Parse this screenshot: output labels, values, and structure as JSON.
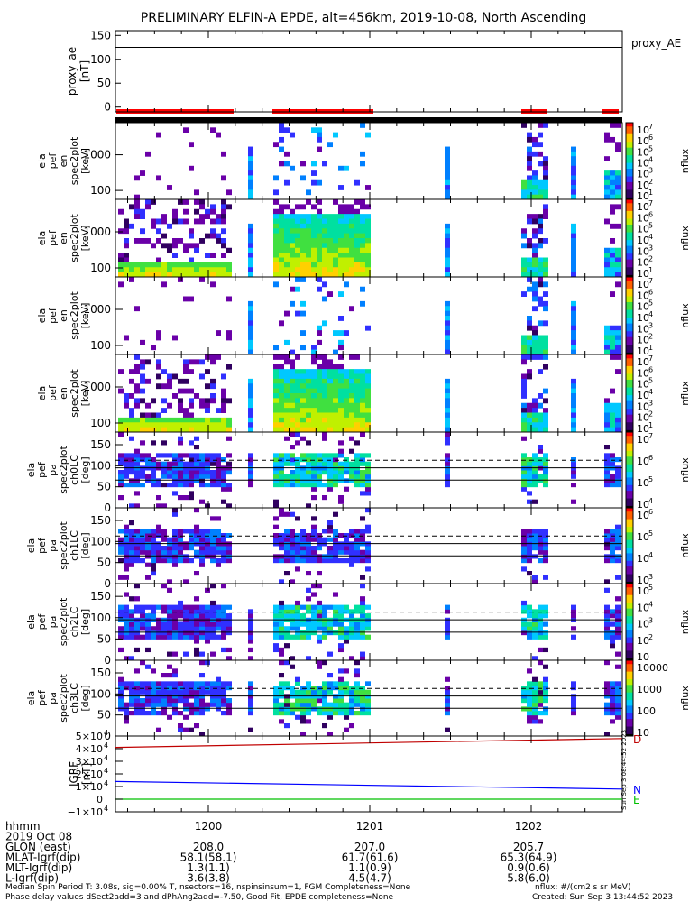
{
  "title": "PRELIMINARY ELFIN-A EPDE, alt=456km, 2019-10-08, North Ascending",
  "colors": {
    "foreground": "#000000",
    "background": "#ffffff",
    "science_zone": "#ff0000",
    "igrf_d": "#c00000",
    "igrf_n": "#0000ff",
    "igrf_e": "#00c000",
    "colormap": [
      "#000000",
      "#300060",
      "#6a00a8",
      "#3030ff",
      "#0080ff",
      "#00c8ff",
      "#00e0a0",
      "#40e040",
      "#c0f000",
      "#ffd000",
      "#ff6000",
      "#ff0000"
    ]
  },
  "chart_data": [
    {
      "id": "proxy_ae",
      "type": "line",
      "ylabel": "proxy_ae\n[nT]",
      "side_label": "proxy_AE",
      "ylim": [
        -10,
        160
      ],
      "yticks": [
        "150",
        "100",
        "50",
        "0"
      ],
      "series": [
        {
          "name": "proxy_AE",
          "values": [
            125,
            125
          ]
        }
      ]
    },
    {
      "id": "spec_en_1",
      "type": "heatmap",
      "ylabel": "ela\npef\nen\nspec2plot\n[keV]",
      "yticks": [
        "1000",
        "100"
      ],
      "log_y": true,
      "colorbar": {
        "label": "nflux",
        "ticks": [
          "10",
          "10",
          "10",
          "10",
          "10",
          "10",
          "10"
        ],
        "exponents": [
          "7",
          "6",
          "5",
          "4",
          "3",
          "2",
          "1"
        ]
      }
    },
    {
      "id": "spec_en_2",
      "type": "heatmap",
      "ylabel": "ela\npef\nen\nspec2plot\n[keV]",
      "yticks": [
        "1000",
        "100"
      ],
      "log_y": true,
      "colorbar": {
        "label": "nflux",
        "ticks": [
          "10",
          "10",
          "10",
          "10",
          "10",
          "10",
          "10"
        ],
        "exponents": [
          "7",
          "6",
          "5",
          "4",
          "3",
          "2",
          "1"
        ]
      }
    },
    {
      "id": "spec_en_3",
      "type": "heatmap",
      "ylabel": "ela\npef\nen\nspec2plot\n[keV]",
      "yticks": [
        "1000",
        "100"
      ],
      "log_y": true,
      "colorbar": {
        "label": "nflux",
        "ticks": [
          "10",
          "10",
          "10",
          "10",
          "10",
          "10",
          "10"
        ],
        "exponents": [
          "7",
          "6",
          "5",
          "4",
          "3",
          "2",
          "1"
        ]
      }
    },
    {
      "id": "spec_en_4",
      "type": "heatmap",
      "ylabel": "ela\npef\nen\nspec2plot\n[keV]",
      "yticks": [
        "1000",
        "100"
      ],
      "log_y": true,
      "colorbar": {
        "label": "nflux",
        "ticks": [
          "10",
          "10",
          "10",
          "10",
          "10",
          "10",
          "10"
        ],
        "exponents": [
          "7",
          "6",
          "5",
          "4",
          "3",
          "2",
          "1"
        ]
      }
    },
    {
      "id": "pa_ch0",
      "type": "heatmap",
      "ylabel": "ela\npef\npa\nspec2plot\nch0LC\n[deg]",
      "yticks": [
        "150",
        "100",
        "50",
        "0"
      ],
      "ylim": [
        0,
        180
      ],
      "colorbar": {
        "label": "nflux",
        "ticks": [
          "10",
          "10",
          "10",
          "10"
        ],
        "exponents": [
          "7",
          "6",
          "5",
          "4"
        ]
      }
    },
    {
      "id": "pa_ch1",
      "type": "heatmap",
      "ylabel": "ela\npef\npa\nspec2plot\nch1LC\n[deg]",
      "yticks": [
        "150",
        "100",
        "50",
        "0"
      ],
      "ylim": [
        0,
        180
      ],
      "colorbar": {
        "label": "nflux",
        "ticks": [
          "10",
          "10",
          "10",
          "10"
        ],
        "exponents": [
          "6",
          "5",
          "4",
          "3"
        ]
      }
    },
    {
      "id": "pa_ch2",
      "type": "heatmap",
      "ylabel": "ela\npef\npa\nspec2plot\nch2LC\n[deg]",
      "yticks": [
        "150",
        "100",
        "50",
        "0"
      ],
      "ylim": [
        0,
        180
      ],
      "colorbar": {
        "label": "nflux",
        "ticks": [
          "10",
          "10",
          "10",
          "10",
          "10"
        ],
        "exponents": [
          "5",
          "4",
          "3",
          "2",
          ""
        ]
      }
    },
    {
      "id": "pa_ch3",
      "type": "heatmap",
      "ylabel": "ela\npef\npa\nspec2plot\nch3LC\n[deg]",
      "yticks": [
        "150",
        "100",
        "50",
        "0"
      ],
      "ylim": [
        0,
        180
      ],
      "colorbar": {
        "label": "nflux",
        "ticks": [
          "10000",
          "1000",
          "100",
          "10"
        ],
        "exponents": []
      }
    },
    {
      "id": "igrf",
      "type": "line",
      "ylabel": "IGRF\n[nT]",
      "yticks": [
        "5×10",
        "4×10",
        "3×10",
        "2×10",
        "1×10",
        "0",
        "−1×10"
      ],
      "ytick_exp": "4",
      "ylim": [
        -10000,
        50000
      ],
      "series": [
        {
          "name": "D",
          "values": [
            41000,
            48000
          ]
        },
        {
          "name": "N",
          "values": [
            14000,
            8000
          ]
        },
        {
          "name": "E",
          "values": [
            0,
            0
          ]
        }
      ],
      "side_note": "Sun Sep  3 08:44:52 2023"
    }
  ],
  "time_axis": {
    "tick_labels": [
      "1200",
      "1201",
      "1202"
    ],
    "rows": [
      {
        "label": "hhmm",
        "values": [
          "",
          "",
          ""
        ]
      },
      {
        "label": "2019 Oct 08",
        "values": [
          "",
          "",
          ""
        ]
      },
      {
        "label": "GLON (east)",
        "values": [
          "208.0",
          "207.0",
          "205.7"
        ]
      },
      {
        "label": "MLAT-Igrf(dip)",
        "values": [
          "58.1(58.1)",
          "61.7(61.6)",
          "65.3(64.9)"
        ]
      },
      {
        "label": "MLT-Igrf(dip)",
        "values": [
          "1.3(1.1)",
          "1.1(0.9)",
          "0.9(0.6)"
        ]
      },
      {
        "label": "L-Igrf(dip)",
        "values": [
          "3.6(3.8)",
          "4.5(4.7)",
          "5.8(6.0)"
        ]
      }
    ]
  },
  "footer": {
    "line1": "Median Spin Period T: 3.08s, sig=0.00% T, nsectors=16, nspinsinsum=1, FGM Completeness=None",
    "line2": "Phase delay values dSect2add=3 and dPhAng2add=-7.50, Good Fit, EPDE completeness=None",
    "units": "nflux: #/(cm2 s sr MeV)",
    "created": "Created: Sun Sep  3 13:44:52 2023"
  }
}
